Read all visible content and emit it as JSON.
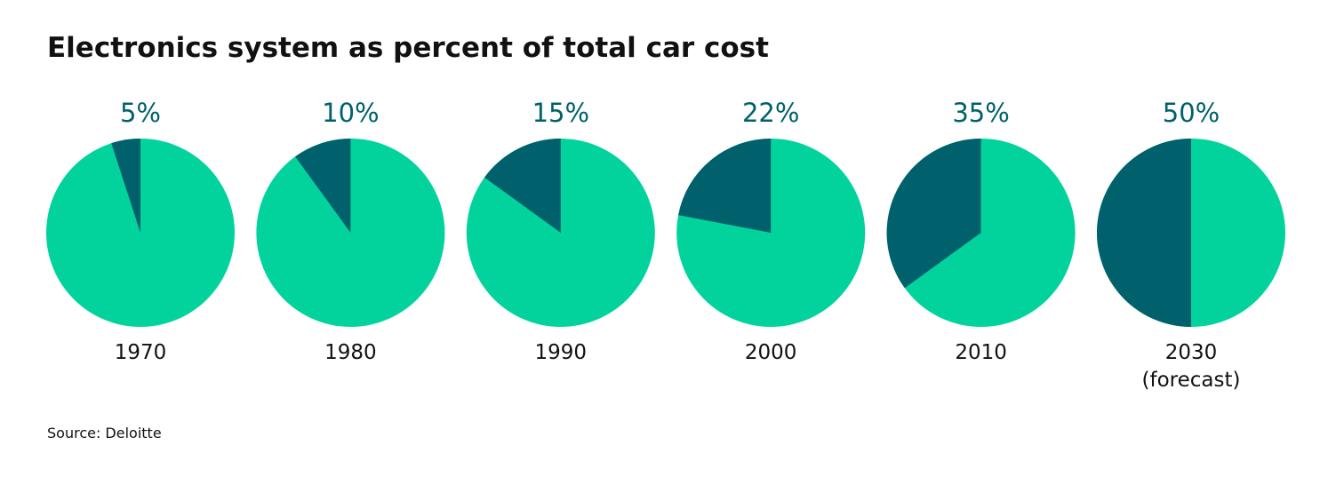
{
  "chart_data": {
    "type": "pie",
    "title": "Electronics system as percent of total car cost",
    "categories": [
      "1970",
      "1980",
      "1990",
      "2000",
      "2010",
      "2030 (forecast)"
    ],
    "values": [
      5,
      10,
      15,
      22,
      35,
      50
    ],
    "value_labels": [
      "5%",
      "10%",
      "15%",
      "22%",
      "35%",
      "50%"
    ],
    "color": "#00606b",
    "rest_color": "#02d39d",
    "source": "Source: Deloitte"
  }
}
